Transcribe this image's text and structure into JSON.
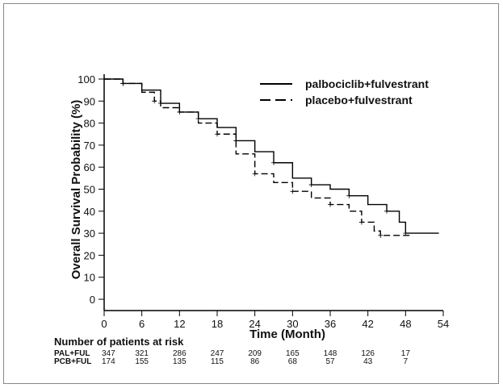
{
  "chart_data": {
    "type": "line",
    "ylabel": "Overall Survival Probability (%)",
    "xlabel": "Time (Month)",
    "xlim": [
      0,
      54
    ],
    "ylim": [
      0,
      100
    ],
    "xticks": [
      0,
      6,
      12,
      18,
      24,
      30,
      36,
      42,
      48,
      54
    ],
    "yticks": [
      0,
      10,
      20,
      30,
      40,
      50,
      60,
      70,
      80,
      90,
      100
    ],
    "legend_position": "top-right",
    "series": [
      {
        "name": "palbociclib+fulvestrant",
        "style": "solid",
        "x": [
          0,
          3,
          6,
          9,
          12,
          15,
          18,
          21,
          24,
          27,
          30,
          33,
          36,
          39,
          42,
          45,
          47,
          48,
          53.3
        ],
        "y": [
          100,
          98,
          95,
          89,
          85,
          82,
          78,
          72,
          67,
          62,
          55,
          52,
          50,
          47,
          43,
          40,
          35,
          30,
          30
        ]
      },
      {
        "name": "placebo+fulvestrant",
        "style": "dashed",
        "x": [
          0,
          3,
          6,
          8,
          9,
          12,
          15,
          18,
          21,
          24,
          27,
          30,
          33,
          36,
          39,
          41,
          43,
          44,
          49
        ],
        "y": [
          100,
          98,
          94,
          90,
          87,
          85,
          80,
          75,
          66,
          57,
          53,
          49,
          46,
          43,
          40,
          35,
          31,
          29,
          29
        ]
      }
    ],
    "risk_table": {
      "title": "Number of patients at risk",
      "rows": [
        {
          "label": "PAL+FUL",
          "values": [
            347,
            321,
            286,
            247,
            209,
            165,
            148,
            126,
            17
          ]
        },
        {
          "label": "PCB+FUL",
          "values": [
            174,
            155,
            135,
            115,
            86,
            68,
            57,
            43,
            7
          ]
        }
      ]
    }
  }
}
